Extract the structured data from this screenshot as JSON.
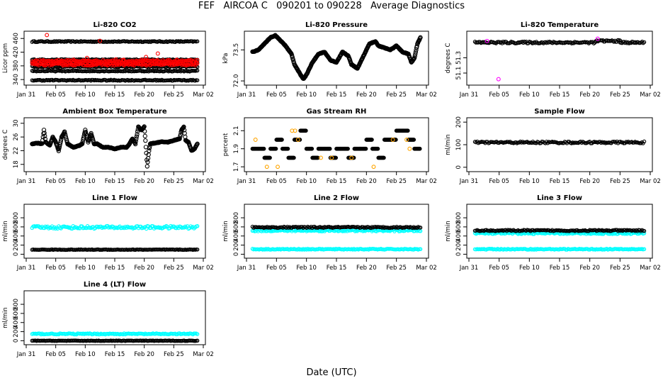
{
  "page": {
    "title": "FEF   AIRCOA C   090201 to 090228   Average Diagnostics",
    "xlabel": "Date (UTC)"
  },
  "x_ticks": [
    "Jan 31",
    "Feb 05",
    "Feb 10",
    "Feb 15",
    "Feb 20",
    "Feb 25",
    "Mar 02"
  ],
  "x_tick_days": [
    0,
    5,
    10,
    15,
    20,
    25,
    30
  ],
  "x_range": [
    0,
    30
  ],
  "data_days": [
    1,
    29
  ],
  "colors": {
    "black": "#000000",
    "red": "#ff0000",
    "magenta": "#ff00ff",
    "cyan": "#00ffff",
    "orange": "#ffa500",
    "green": "#00aa00"
  },
  "chart_data": [
    {
      "type": "scatter",
      "title": "Li-820 CO2",
      "ylabel": "Licor ppm",
      "ylim": [
        330,
        475
      ],
      "yticks": [
        340,
        380,
        420,
        460
      ],
      "series": [
        {
          "name": "level-1",
          "color": "black",
          "kind": "band",
          "y": 451,
          "spread": 1.5
        },
        {
          "name": "level-2",
          "color": "black",
          "kind": "band",
          "y": 398,
          "spread": 1.5
        },
        {
          "name": "level-3",
          "color": "black",
          "kind": "band",
          "y": 391,
          "spread": 1.5
        },
        {
          "name": "level-4",
          "color": "black",
          "kind": "band",
          "y": 378,
          "spread": 1.5
        },
        {
          "name": "level-5",
          "color": "black",
          "kind": "band",
          "y": 365,
          "spread": 1.5
        },
        {
          "name": "level-6",
          "color": "black",
          "kind": "band",
          "y": 338,
          "spread": 1.5
        },
        {
          "name": "sample-1",
          "color": "red",
          "kind": "band",
          "y": 394,
          "spread": 3
        },
        {
          "name": "sample-2",
          "color": "red",
          "kind": "band",
          "y": 384,
          "spread": 3
        },
        {
          "name": "outliers",
          "color": "red",
          "kind": "points",
          "x": [
            3.5,
            5.5,
            8,
            10.3,
            12.5,
            15.2,
            16.5,
            19.5,
            20.3,
            22.3,
            25.5
          ],
          "y": [
            470,
            397,
            398,
            403,
            453,
            399,
            398,
            398,
            406,
            416,
            398
          ]
        }
      ]
    },
    {
      "type": "line",
      "title": "Li-820 Pressure",
      "ylabel": "kPa",
      "ylim": [
        71.9,
        74.3
      ],
      "yticks": [
        72.0,
        73.5
      ],
      "series": [
        {
          "name": "pressure",
          "color": "black",
          "kind": "line",
          "x": [
            1,
            2,
            3,
            4,
            4.8,
            5.5,
            6.5,
            7.5,
            8,
            9,
            9.5,
            10,
            11,
            12,
            13,
            14,
            15,
            16,
            17,
            17.5,
            18.5,
            19.5,
            20.5,
            21.5,
            22,
            23,
            24,
            25,
            26,
            27,
            27.5,
            28,
            28.5,
            29
          ],
          "y": [
            73.4,
            73.5,
            73.8,
            74.1,
            74.2,
            74.0,
            73.7,
            73.3,
            72.8,
            72.3,
            72.1,
            72.3,
            72.9,
            73.3,
            73.4,
            73.0,
            72.9,
            73.4,
            73.2,
            72.8,
            72.6,
            73.2,
            73.8,
            73.9,
            73.7,
            73.6,
            73.5,
            73.7,
            73.4,
            73.3,
            72.9,
            73.1,
            73.8,
            74.1
          ]
        }
      ]
    },
    {
      "type": "scatter",
      "title": "Li-820 Temperature",
      "ylabel": "degrees C",
      "ylim": [
        50.97,
        51.62
      ],
      "yticks": [
        51.1,
        51.3
      ],
      "series": [
        {
          "name": "temperature",
          "color": "black",
          "kind": "band-steps",
          "steps": [
            [
              1,
              21,
              51.5
            ],
            [
              21,
              25,
              51.52
            ],
            [
              25,
              29,
              51.5
            ]
          ],
          "spread": 0.012
        },
        {
          "name": "outliers",
          "color": "magenta",
          "kind": "points",
          "x": [
            3,
            4.9,
            21.3
          ],
          "y": [
            51.52,
            51.02,
            51.55
          ]
        }
      ]
    },
    {
      "type": "line",
      "title": "Ambient Box Temperature",
      "ylabel": "degrees C",
      "ylim": [
        16.5,
        31
      ],
      "yticks": [
        18,
        22,
        26,
        30
      ],
      "series": [
        {
          "name": "ambient",
          "color": "black",
          "kind": "line",
          "x": [
            1,
            2,
            2.7,
            3,
            3.3,
            4,
            4.5,
            5,
            5.5,
            6,
            6.5,
            7,
            8,
            9,
            9.5,
            10,
            10.5,
            11,
            11.5,
            12,
            13,
            14,
            15,
            16,
            17,
            17.5,
            18,
            18.5,
            19,
            19.5,
            20,
            20.2,
            20.5,
            20.8,
            21,
            22,
            23,
            24,
            25,
            26,
            26.3,
            26.7,
            27,
            27.5,
            28,
            28.5,
            29
          ],
          "y": [
            24,
            24.2,
            24,
            28,
            24.5,
            23.5,
            26,
            24.5,
            22,
            26,
            27.5,
            24,
            23,
            23.5,
            24,
            28,
            24.5,
            27,
            24,
            24,
            23,
            23,
            22.5,
            23,
            23,
            24,
            25.5,
            24,
            29,
            28,
            29,
            25,
            17.5,
            22,
            24,
            24.3,
            24.6,
            24.5,
            25,
            25.5,
            28,
            29,
            25,
            24.5,
            22,
            22.5,
            24
          ]
        }
      ]
    },
    {
      "type": "scatter",
      "title": "Gas Stream RH",
      "ylabel": "percent",
      "ylim": [
        1.67,
        2.22
      ],
      "yticks": [
        1.7,
        1.9,
        2.1
      ],
      "series": [
        {
          "name": "rh-black",
          "color": "black",
          "kind": "steps",
          "x": [
            1,
            2,
            3,
            4,
            5,
            6,
            7,
            8,
            9,
            10,
            11,
            12,
            13,
            14,
            15,
            16,
            17,
            18,
            19,
            20,
            21,
            22,
            23,
            24,
            25,
            26,
            27,
            28,
            29
          ],
          "y": [
            1.9,
            1.9,
            1.8,
            1.9,
            2.0,
            1.9,
            1.8,
            2.0,
            2.1,
            1.9,
            1.8,
            1.9,
            1.9,
            1.8,
            1.9,
            1.9,
            1.8,
            1.9,
            1.9,
            2.0,
            1.9,
            1.8,
            2.0,
            2.0,
            2.1,
            2.1,
            2.0,
            1.9,
            1.8
          ]
        },
        {
          "name": "rh-orange",
          "color": "orange",
          "kind": "points",
          "x": [
            1.5,
            3.4,
            5.2,
            7.6,
            8.1,
            8.6,
            12.4,
            14.2,
            17.5,
            21.2,
            24.4,
            26.7,
            27.2
          ],
          "y": [
            2.0,
            1.7,
            1.7,
            2.1,
            2.1,
            2.0,
            1.8,
            1.8,
            1.8,
            1.7,
            2.0,
            2.0,
            1.9
          ]
        }
      ]
    },
    {
      "type": "scatter",
      "title": "Sample Flow",
      "ylabel": "ml/min",
      "ylim": [
        -10,
        210
      ],
      "yticks": [
        0,
        100,
        200
      ],
      "series": [
        {
          "name": "sample",
          "color": "black",
          "kind": "band",
          "y": 110,
          "spread": 4
        }
      ]
    },
    {
      "type": "scatter",
      "title": "Line 1 Flow",
      "ylabel": "ml/min",
      "ylim": [
        -40,
        1050
      ],
      "yticks": [
        0,
        200,
        400,
        600,
        800
      ],
      "series": [
        {
          "name": "line1-cyan",
          "color": "cyan",
          "kind": "band",
          "y": 590,
          "spread": 30
        },
        {
          "name": "line1-black",
          "color": "black",
          "kind": "band",
          "y": 100,
          "spread": 6
        }
      ]
    },
    {
      "type": "scatter",
      "title": "Line 2 Flow",
      "ylabel": "ml/min",
      "ylim": [
        -40,
        1050
      ],
      "yticks": [
        0,
        200,
        400,
        600,
        800
      ],
      "series": [
        {
          "name": "line2-cyan",
          "color": "cyan",
          "kind": "band",
          "y": 520,
          "spread": 18
        },
        {
          "name": "line2-black",
          "color": "black",
          "kind": "band",
          "y": 590,
          "spread": 14
        },
        {
          "name": "line2-cyan-low",
          "color": "cyan",
          "kind": "band",
          "y": 110,
          "spread": 10
        }
      ]
    },
    {
      "type": "scatter",
      "title": "Line 3 Flow",
      "ylabel": "ml/min",
      "ylim": [
        -40,
        1050
      ],
      "yticks": [
        0,
        200,
        400,
        600,
        800
      ],
      "series": [
        {
          "name": "line3-cyan",
          "color": "cyan",
          "kind": "band",
          "y": 460,
          "spread": 18
        },
        {
          "name": "line3-black",
          "color": "black",
          "kind": "band",
          "y": 520,
          "spread": 14
        },
        {
          "name": "line3-cyan-low",
          "color": "cyan",
          "kind": "band",
          "y": 110,
          "spread": 10
        }
      ]
    },
    {
      "type": "scatter",
      "title": "Line 4 (LT) Flow",
      "ylabel": "ml/min",
      "ylim": [
        -40,
        1050
      ],
      "yticks": [
        0,
        200,
        400,
        600,
        800
      ],
      "series": [
        {
          "name": "line4-cyan",
          "color": "cyan",
          "kind": "band",
          "y": 150,
          "spread": 12
        },
        {
          "name": "line4-black",
          "color": "black",
          "kind": "band",
          "y": 0,
          "spread": 5
        }
      ]
    }
  ]
}
